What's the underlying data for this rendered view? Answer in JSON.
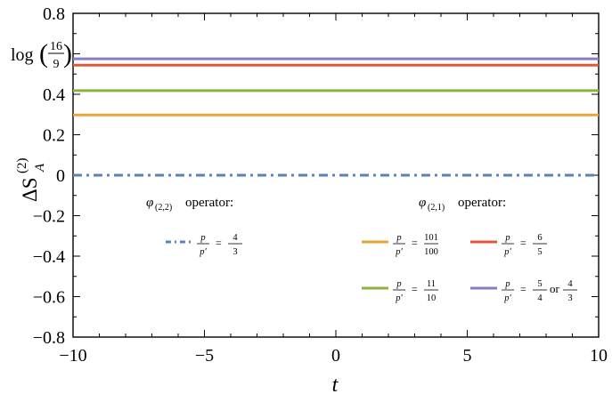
{
  "chart_data": {
    "type": "line",
    "xlabel": "t",
    "ylabel": "ΔS_A^(2)",
    "xlim": [
      -10,
      10
    ],
    "ylim": [
      -0.8,
      0.8
    ],
    "grid": false,
    "x_ticks": [
      -10,
      -5,
      0,
      5,
      10
    ],
    "x_tick_labels": [
      "−10",
      "−5",
      "0",
      "5",
      "10"
    ],
    "y_ticks": [
      0.8,
      0.6,
      0.4,
      0.2,
      0,
      -0.2,
      -0.4,
      -0.6,
      -0.8
    ],
    "y_tick_labels": [
      "0.8",
      "",
      "0.4",
      "0.2",
      "0",
      "−0.2",
      "−0.4",
      "−0.6",
      "−0.8"
    ],
    "y_special_tick": {
      "value": 0.5754,
      "label_prefix": "log",
      "num": "16",
      "den": "9"
    },
    "x": [
      -10,
      10
    ],
    "series": [
      {
        "group": "phi22",
        "style": "dashdot",
        "color": "#5b7fbf",
        "values": [
          0,
          0
        ],
        "ratio_num": "4",
        "ratio_den": "3"
      },
      {
        "group": "phi21",
        "style": "solid",
        "color": "#e8a33a",
        "values": [
          0.298,
          0.298
        ],
        "ratio_num": "101",
        "ratio_den": "100"
      },
      {
        "group": "phi21",
        "style": "solid",
        "color": "#8cb33c",
        "values": [
          0.418,
          0.418
        ],
        "ratio_num": "11",
        "ratio_den": "10"
      },
      {
        "group": "phi21",
        "style": "solid",
        "color": "#e05a3a",
        "values": [
          0.544,
          0.544
        ],
        "ratio_num": "6",
        "ratio_den": "5"
      },
      {
        "group": "phi21",
        "style": "solid",
        "color": "#8a7cc4",
        "values": [
          0.5754,
          0.5754
        ],
        "ratio_num": "5",
        "ratio_den": "4",
        "ratio_or": "or",
        "ratio_num2": "4",
        "ratio_den2": "3"
      }
    ],
    "legend": {
      "phi22_header": "operator:",
      "phi22_sub": "(2,2)",
      "phi21_header": "operator:",
      "phi21_sub": "(2,1)",
      "phi_symbol": "φ",
      "p_label": "p",
      "pprime_label": "p′",
      "equals": "="
    }
  }
}
